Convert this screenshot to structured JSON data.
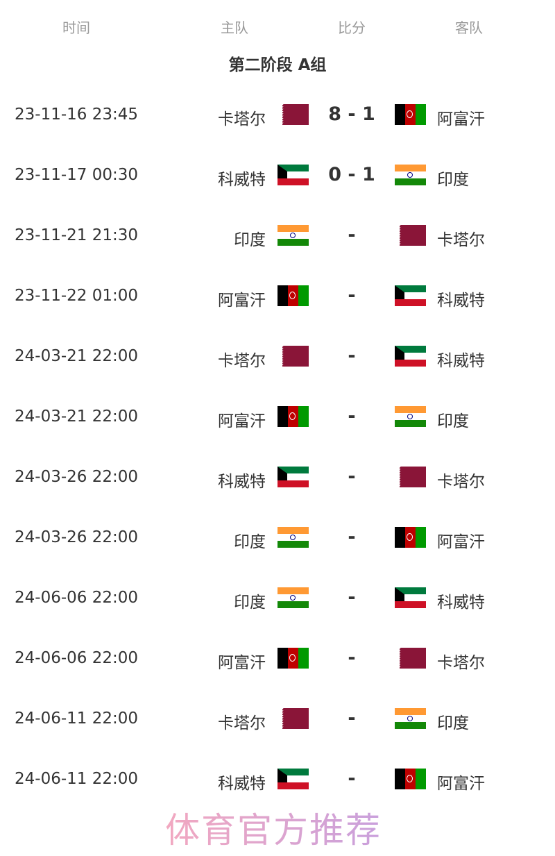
{
  "headers": {
    "time": "时间",
    "home": "主队",
    "score": "比分",
    "away": "客队"
  },
  "group_title": "第二阶段 A组",
  "matches": [
    {
      "time": "23-11-16 23:45",
      "home": "卡塔尔",
      "home_flag": "qat",
      "score": "8 - 1",
      "away": "阿富汗",
      "away_flag": "afg"
    },
    {
      "time": "23-11-17 00:30",
      "home": "科威特",
      "home_flag": "kuw",
      "score": "0 - 1",
      "away": "印度",
      "away_flag": "ind"
    },
    {
      "time": "23-11-21 21:30",
      "home": "印度",
      "home_flag": "ind",
      "score": "-",
      "away": "卡塔尔",
      "away_flag": "qat"
    },
    {
      "time": "23-11-22 01:00",
      "home": "阿富汗",
      "home_flag": "afg",
      "score": "-",
      "away": "科威特",
      "away_flag": "kuw"
    },
    {
      "time": "24-03-21 22:00",
      "home": "卡塔尔",
      "home_flag": "qat",
      "score": "-",
      "away": "科威特",
      "away_flag": "kuw"
    },
    {
      "time": "24-03-21 22:00",
      "home": "阿富汗",
      "home_flag": "afg",
      "score": "-",
      "away": "印度",
      "away_flag": "ind"
    },
    {
      "time": "24-03-26 22:00",
      "home": "科威特",
      "home_flag": "kuw",
      "score": "-",
      "away": "卡塔尔",
      "away_flag": "qat"
    },
    {
      "time": "24-03-26 22:00",
      "home": "印度",
      "home_flag": "ind",
      "score": "-",
      "away": "阿富汗",
      "away_flag": "afg"
    },
    {
      "time": "24-06-06 22:00",
      "home": "印度",
      "home_flag": "ind",
      "score": "-",
      "away": "科威特",
      "away_flag": "kuw"
    },
    {
      "time": "24-06-06 22:00",
      "home": "阿富汗",
      "home_flag": "afg",
      "score": "-",
      "away": "卡塔尔",
      "away_flag": "qat"
    },
    {
      "time": "24-06-11 22:00",
      "home": "卡塔尔",
      "home_flag": "qat",
      "score": "-",
      "away": "印度",
      "away_flag": "ind"
    },
    {
      "time": "24-06-11 22:00",
      "home": "科威特",
      "home_flag": "kuw",
      "score": "-",
      "away": "阿富汗",
      "away_flag": "afg"
    }
  ],
  "watermark": "体育官方推荐"
}
